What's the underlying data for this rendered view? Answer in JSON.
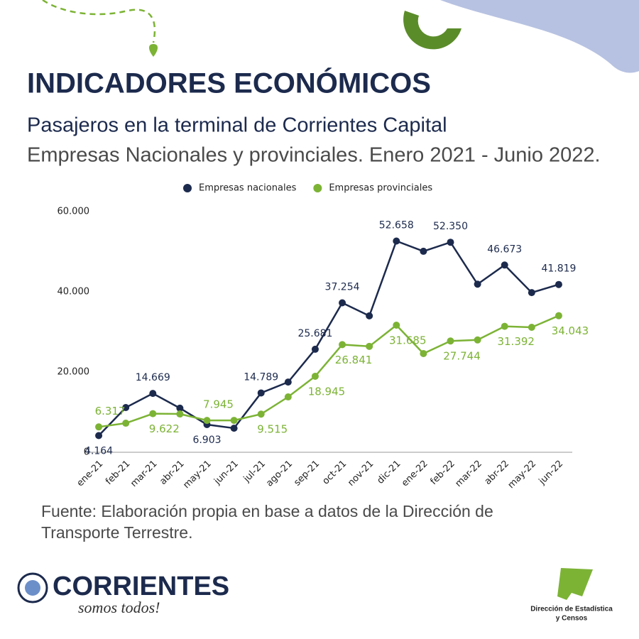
{
  "header": {
    "title": "INDICADORES ECONÓMICOS",
    "subtitle": "Pasajeros en la terminal de Corrientes Capital",
    "subtitle2": "Empresas Nacionales y provinciales. Enero 2021 - Junio 2022."
  },
  "chart_data": {
    "type": "line",
    "categories": [
      "ene-21",
      "feb-21",
      "mar-21",
      "abr-21",
      "may-21",
      "jun-21",
      "jul-21",
      "ago-21",
      "sep-21",
      "oct-21",
      "nov-21",
      "dic-21",
      "ene-22",
      "feb-22",
      "mar-22",
      "abr-22",
      "may-22",
      "jun-22"
    ],
    "series": [
      {
        "name": "Empresas nacionales",
        "color": "#1c2a4d",
        "values": [
          4164,
          11150,
          14669,
          11000,
          6903,
          6000,
          14789,
          17500,
          25681,
          37254,
          34000,
          52658,
          50100,
          52350,
          41900,
          46673,
          39800,
          41819
        ],
        "value_labels": [
          "4.164",
          null,
          "14.669",
          null,
          "6.903",
          null,
          "14.789",
          null,
          "25.681",
          "37.254",
          null,
          "52.658",
          null,
          "52.350",
          null,
          "46.673",
          null,
          "41.819"
        ]
      },
      {
        "name": "Empresas provinciales",
        "color": "#7cb335",
        "values": [
          6317,
          7250,
          9622,
          9550,
          7945,
          7950,
          9515,
          13800,
          18945,
          26841,
          26400,
          31685,
          24600,
          27744,
          28000,
          31392,
          31150,
          34043
        ],
        "value_labels": [
          "6.317",
          null,
          "9.622",
          null,
          "7.945",
          null,
          "9.515",
          null,
          "18.945",
          "26.841",
          null,
          "31.685",
          null,
          "27.744",
          null,
          "31.392",
          null,
          "34.043"
        ]
      }
    ],
    "ylim": [
      0,
      60000
    ],
    "yticks": [
      0,
      {
        "value": 20000,
        "label": "20.000"
      },
      {
        "value": 40000,
        "label": "40.000"
      },
      {
        "value": 60000,
        "label": "60.000"
      }
    ],
    "grid": false,
    "legend": "top"
  },
  "footer": {
    "source_line1": "Fuente: Elaboración propia en base a datos de la Dirección de",
    "source_line2": "Transporte Terrestre.",
    "logo": "CORRIENTES",
    "slogan": "somos todos!",
    "office_line1": "Dirección de Estadística",
    "office_line2": "y Censos"
  }
}
